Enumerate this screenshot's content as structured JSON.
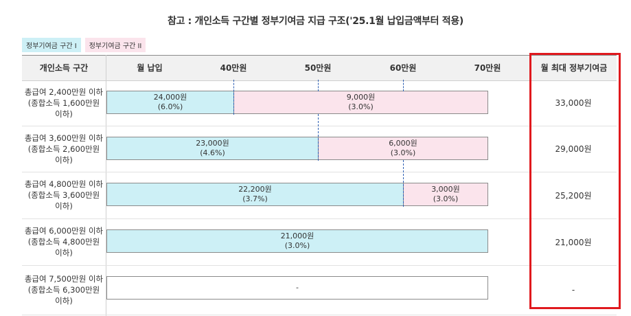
{
  "title": "참고 : 개인소득 구간별 정부기여금 지급 구조('25.1월 납입금액부터 적용)",
  "legend": {
    "tier1": "정부기여금 구간 I",
    "tier2": "정부기여금 구간 II"
  },
  "headers": {
    "income_range": "개인소득 구간",
    "monthly_payment": "월 납입",
    "t40": "40만원",
    "t50": "50만원",
    "t60": "60만원",
    "t70": "70만원",
    "max_contribution": "월 최대 정부기여금"
  },
  "rows": [
    {
      "line1": "총급여 2,400만원 이하",
      "line2": "(종합소득 1,600만원",
      "line3": "이하)",
      "tier1_amount": "24,000원",
      "tier1_rate": "(6.0%)",
      "tier2_amount": "9,000원",
      "tier2_rate": "(3.0%)",
      "tier1_limit_won": 400000,
      "max": "33,000원"
    },
    {
      "line1": "총급여 3,600만원 이하",
      "line2": "(종합소득 2,600만원",
      "line3": "이하)",
      "tier1_amount": "23,000원",
      "tier1_rate": "(4.6%)",
      "tier2_amount": "6,000원",
      "tier2_rate": "(3.0%)",
      "tier1_limit_won": 500000,
      "max": "29,000원"
    },
    {
      "line1": "총급여 4,800만원 이하",
      "line2": "(종합소득 3,600만원",
      "line3": "이하)",
      "tier1_amount": "22,200원",
      "tier1_rate": "(3.7%)",
      "tier2_amount": "3,000원",
      "tier2_rate": "(3.0%)",
      "tier1_limit_won": 600000,
      "max": "25,200원"
    },
    {
      "line1": "총급여 6,000만원 이하",
      "line2": "(종합소득 4,800만원",
      "line3": "이하)",
      "tier1_amount": "21,000원",
      "tier1_rate": "(3.0%)",
      "tier1_limit_won": 700000,
      "max": "21,000원"
    },
    {
      "line1": "총급여 7,500만원 이하",
      "line2": "(종합소득 6,300만원",
      "line3": "이하)",
      "none_label": "-",
      "max": "-"
    }
  ],
  "colors": {
    "tier1": "#cdf0f6",
    "tier2": "#fbe4ec",
    "highlight": "#e0191e",
    "dash": "#2d5fb3"
  }
}
